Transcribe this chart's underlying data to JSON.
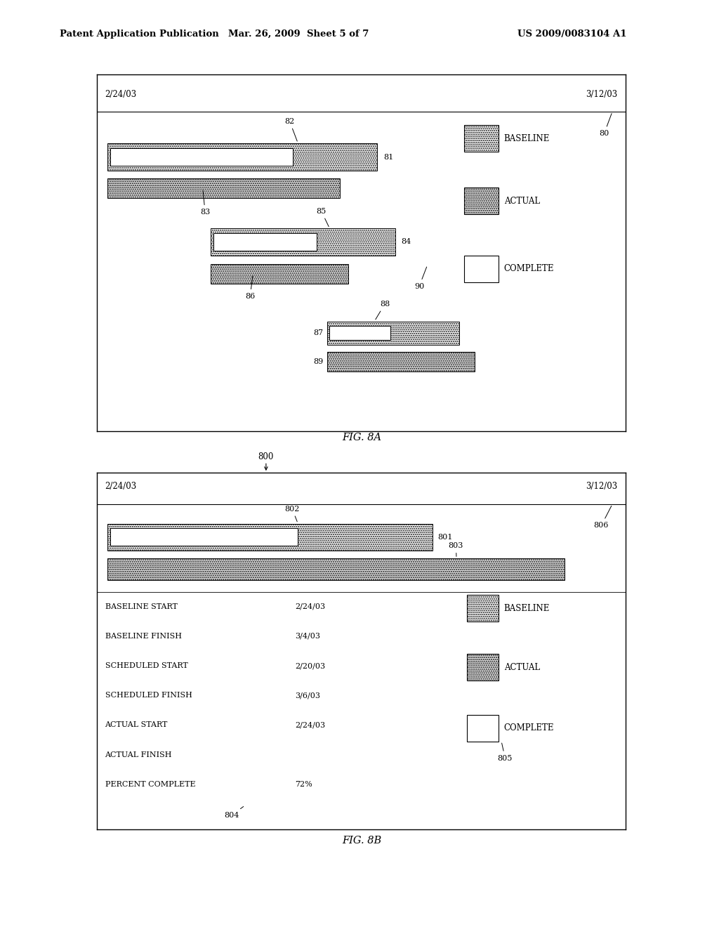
{
  "header_left": "Patent Application Publication",
  "header_mid": "Mar. 26, 2009  Sheet 5 of 7",
  "header_right": "US 2009/0083104 A1",
  "fig8a_label": "FIG. 8A",
  "fig8b_label": "FIG. 8B",
  "fig8a_date_left": "2/24/03",
  "fig8a_date_right": "3/12/03",
  "fig8b_date_left": "2/24/03",
  "fig8b_date_right": "3/12/03",
  "legend_baseline": "BASELINE",
  "legend_actual": "ACTUAL",
  "legend_complete": "COMPLETE",
  "fig8b_info_labels": [
    "BASELINE START",
    "BASELINE FINISH",
    "SCHEDULED START",
    "SCHEDULED FINISH",
    "ACTUAL START",
    "ACTUAL FINISH",
    "PERCENT COMPLETE"
  ],
  "fig8b_info_values": [
    "2/24/03",
    "3/4/03",
    "2/20/03",
    "3/6/03",
    "2/24/03",
    "",
    "72%"
  ],
  "bg_color": "#ffffff",
  "gray_light": "#d0d0d0",
  "gray_medium": "#b0b0b0"
}
